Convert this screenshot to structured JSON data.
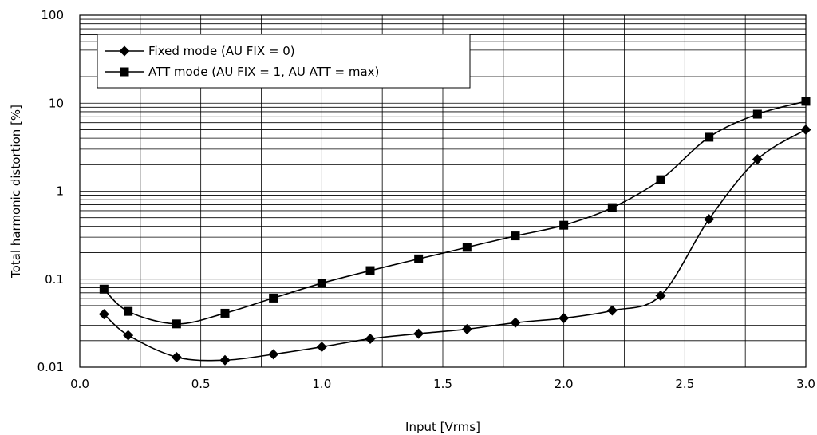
{
  "chart_data": {
    "type": "line",
    "title": "",
    "xlabel": "Input [Vrms]",
    "ylabel": "Total harmonic distortion [%]",
    "xlim": [
      0.0,
      3.0
    ],
    "ylim": [
      0.01,
      100
    ],
    "yscale": "log",
    "xticks": [
      "0.0",
      "0.5",
      "1.0",
      "1.5",
      "2.0",
      "2.5",
      "3.0"
    ],
    "yticks": [
      "0.01",
      "0.1",
      "1",
      "10",
      "100"
    ],
    "grid": true,
    "legend_position": "top-left",
    "series": [
      {
        "name": "Fixed mode (AU FIX = 0)",
        "marker": "diamond",
        "color": "#000000",
        "x": [
          0.1,
          0.2,
          0.4,
          0.6,
          0.8,
          1.0,
          1.2,
          1.4,
          1.6,
          1.8,
          2.0,
          2.2,
          2.4,
          2.6,
          2.8,
          3.0
        ],
        "y": [
          0.04,
          0.023,
          0.013,
          0.012,
          0.014,
          0.017,
          0.021,
          0.024,
          0.027,
          0.032,
          0.036,
          0.044,
          0.065,
          0.48,
          2.3,
          5.0
        ]
      },
      {
        "name": "ATT mode (AU FIX = 1, AU ATT = max)",
        "marker": "square",
        "color": "#000000",
        "x": [
          0.1,
          0.2,
          0.4,
          0.6,
          0.8,
          1.0,
          1.2,
          1.4,
          1.6,
          1.8,
          2.0,
          2.2,
          2.4,
          2.6,
          2.8,
          3.0
        ],
        "y": [
          0.077,
          0.043,
          0.031,
          0.041,
          0.061,
          0.09,
          0.125,
          0.17,
          0.23,
          0.31,
          0.41,
          0.65,
          1.35,
          4.1,
          7.5,
          10.5
        ]
      }
    ]
  }
}
